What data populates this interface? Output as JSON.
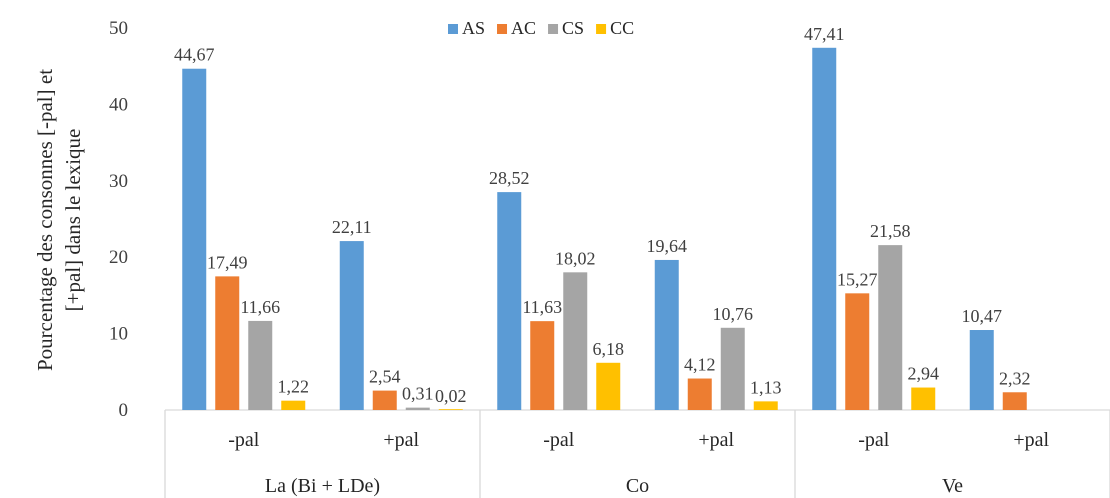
{
  "chart_data": {
    "type": "bar",
    "ylabel_lines": [
      "Pourcentage des consonnes [-pal] et",
      "[+pal] dans le lexique"
    ],
    "ylim": [
      0,
      50
    ],
    "yticks": [
      0,
      10,
      20,
      30,
      40,
      50
    ],
    "legend_position": "top-center",
    "groups": [
      "La (Bi + LDe)",
      "Co",
      "Ve"
    ],
    "categories": [
      "-pal",
      "+pal",
      "-pal",
      "+pal",
      "-pal",
      "+pal"
    ],
    "series": [
      {
        "name": "AS",
        "color": "#5B9BD5",
        "values": [
          44.67,
          22.11,
          28.52,
          19.64,
          47.41,
          10.47
        ],
        "labels": [
          "44,67",
          "22,11",
          "28,52",
          "19,64",
          "47,41",
          "10,47"
        ]
      },
      {
        "name": "AC",
        "color": "#ED7D31",
        "values": [
          17.49,
          2.54,
          11.63,
          4.12,
          15.27,
          2.32
        ],
        "labels": [
          "17,49",
          "2,54",
          "11,63",
          "4,12",
          "15,27",
          "2,32"
        ]
      },
      {
        "name": "CS",
        "color": "#A5A5A5",
        "values": [
          11.66,
          0.31,
          18.02,
          10.76,
          21.58,
          null
        ],
        "labels": [
          "11,66",
          "0,31",
          "18,02",
          "10,76",
          "21,58",
          null
        ]
      },
      {
        "name": "CC",
        "color": "#FFC000",
        "values": [
          1.22,
          0.02,
          6.18,
          1.13,
          2.94,
          null
        ],
        "labels": [
          "1,22",
          "0,02",
          "6,18",
          "1,13",
          "2,94",
          null
        ]
      }
    ]
  }
}
